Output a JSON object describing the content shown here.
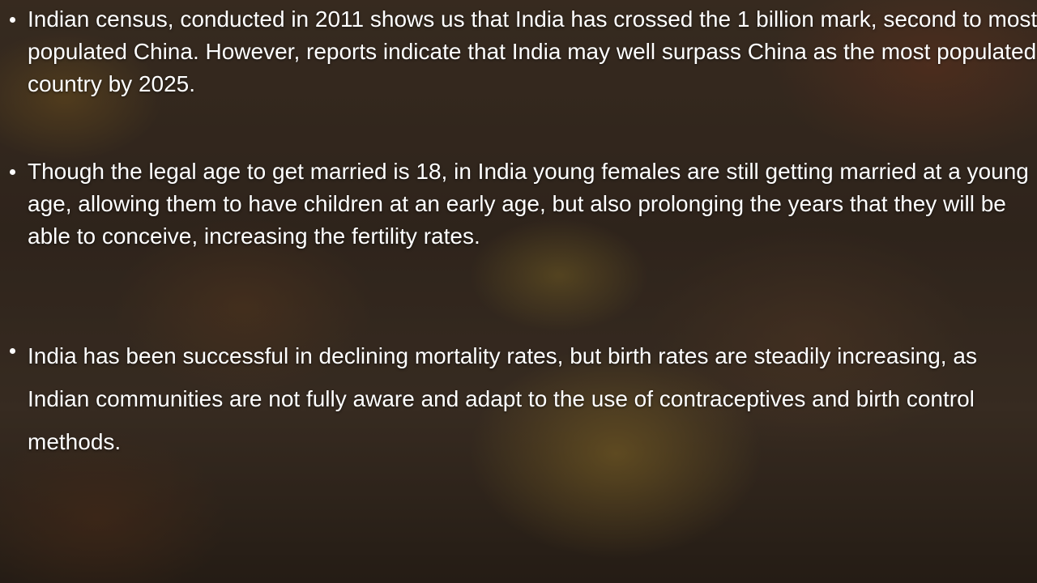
{
  "bullets": [
    "Indian census, conducted in 2011 shows us that India has crossed the 1 billion mark, second to most populated China. However, reports indicate that India may well surpass China as the most populated country by 2025.",
    "Though the legal age to get married is 18, in India young females are still getting married at a young age, allowing them to have children at an early age, but also prolonging the years that they will be able to conceive, increasing the fertility rates.",
    "India has been successful in declining mortality rates, but birth rates are steadily increasing, as Indian communities are not fully aware and adapt to the use of contraceptives and birth control methods."
  ]
}
